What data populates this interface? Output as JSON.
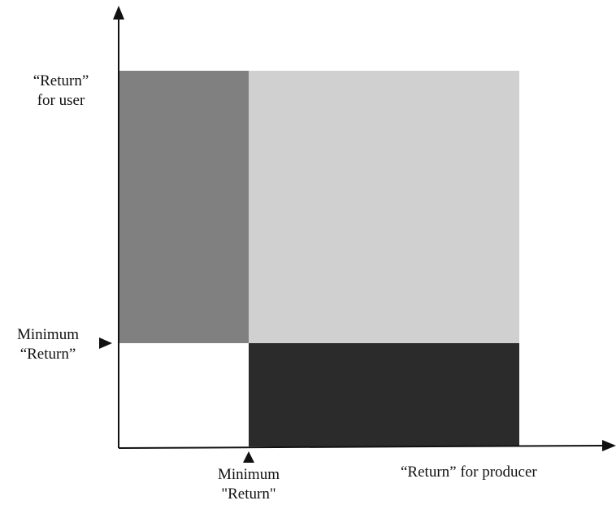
{
  "diagram": {
    "y_axis_label": {
      "line1": "“Return”",
      "line2": "for user"
    },
    "y_minimum_label": {
      "line1": "Minimum",
      "line2": "“Return”"
    },
    "x_minimum_label": {
      "line1": "Minimum",
      "line2": "\"Return\""
    },
    "x_axis_label": "“Return” for producer",
    "colors": {
      "user_only_region": "#808080",
      "both_region": "#d1d0d1",
      "producer_only_region": "#2b2b2b",
      "neither_region": "#ffffff",
      "axis": "#111111"
    }
  }
}
